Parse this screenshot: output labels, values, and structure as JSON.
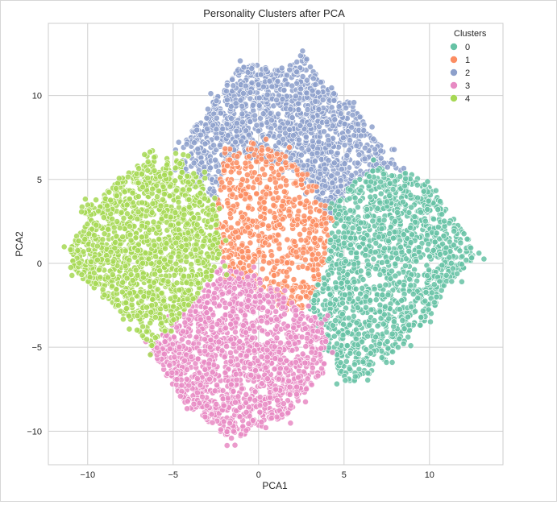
{
  "chart_data": {
    "type": "scatter",
    "title": "Personality Clusters after PCA",
    "xlabel": "PCA1",
    "ylabel": "PCA2",
    "xlim": [
      -12.3,
      14.3
    ],
    "ylim": [
      -12.0,
      14.3
    ],
    "xticks": [
      -10,
      -5,
      0,
      5,
      10
    ],
    "yticks": [
      -10,
      -5,
      0,
      5,
      10
    ],
    "xtick_labels": [
      "−10",
      "−5",
      "0",
      "5",
      "10"
    ],
    "ytick_labels": [
      "−10",
      "−5",
      "0",
      "5",
      "10"
    ],
    "grid": true,
    "legend": {
      "title": "Clusters",
      "placement": "top-right"
    },
    "series": [
      {
        "name": "0",
        "color": "#66c2a5",
        "outline": [
          [
            3.8,
            -1.0
          ],
          [
            4.5,
            3.5
          ],
          [
            5.5,
            4.8
          ],
          [
            7,
            5.8
          ],
          [
            9,
            5.3
          ],
          [
            10,
            4.5
          ],
          [
            11.8,
            2.2
          ],
          [
            12.9,
            0.6
          ],
          [
            11.5,
            -0.8
          ],
          [
            9.8,
            -3.5
          ],
          [
            8.5,
            -4.8
          ],
          [
            7.5,
            -5.7
          ],
          [
            6,
            -7
          ],
          [
            5,
            -7.2
          ],
          [
            4,
            -5
          ],
          [
            3.8,
            -3.5
          ],
          [
            2.8,
            -2.5
          ]
        ]
      },
      {
        "name": "1",
        "color": "#fc8d62",
        "outline": [
          [
            -2.5,
            3.5
          ],
          [
            -2.0,
            6.5
          ],
          [
            0,
            7.0
          ],
          [
            1.5,
            6.5
          ],
          [
            3.0,
            5.0
          ],
          [
            4.2,
            3.0
          ],
          [
            3.8,
            -0.8
          ],
          [
            2.5,
            -2.8
          ],
          [
            1.5,
            -2.5
          ],
          [
            0,
            -1.5
          ],
          [
            -1.5,
            -0.8
          ],
          [
            -2.5,
            1.0
          ]
        ]
      },
      {
        "name": "2",
        "color": "#8da0cb",
        "outline": [
          [
            -4.5,
            7.0
          ],
          [
            -2.5,
            10.0
          ],
          [
            -1,
            11.8
          ],
          [
            0,
            11.8
          ],
          [
            1.5,
            11.5
          ],
          [
            2.5,
            12.5
          ],
          [
            4,
            10.5
          ],
          [
            5.5,
            9.5
          ],
          [
            6.5,
            8.0
          ],
          [
            7.5,
            6.5
          ],
          [
            8.5,
            5.5
          ],
          [
            7,
            5.8
          ],
          [
            5.5,
            4.8
          ],
          [
            4.5,
            3.5
          ],
          [
            4.2,
            2.5
          ],
          [
            3.0,
            4.5
          ],
          [
            1.5,
            5.8
          ],
          [
            0,
            6.2
          ],
          [
            -2,
            6.0
          ],
          [
            -2.5,
            3.5
          ],
          [
            -3.5,
            4.5
          ],
          [
            -4.5,
            5.5
          ]
        ]
      },
      {
        "name": "3",
        "color": "#e78ac3",
        "outline": [
          [
            -2.3,
            -0.3
          ],
          [
            -0.5,
            -0.5
          ],
          [
            1.5,
            -2.0
          ],
          [
            2.5,
            -2.8
          ],
          [
            3.8,
            -3.5
          ],
          [
            4,
            -5
          ],
          [
            3.8,
            -6.5
          ],
          [
            2.5,
            -8
          ],
          [
            1.5,
            -9.2
          ],
          [
            0,
            -9.8
          ],
          [
            -1.5,
            -10.5
          ],
          [
            -3,
            -9.5
          ],
          [
            -4.2,
            -8.5
          ],
          [
            -5.5,
            -6.5
          ],
          [
            -6.3,
            -5.0
          ],
          [
            -5.0,
            -3.6
          ],
          [
            -4.0,
            -2.5
          ]
        ]
      },
      {
        "name": "4",
        "color": "#a6d854",
        "outline": [
          [
            -11,
            0.8
          ],
          [
            -10,
            3.5
          ],
          [
            -8,
            5.0
          ],
          [
            -6.5,
            6.5
          ],
          [
            -4.5,
            6.2
          ],
          [
            -3.5,
            5.0
          ],
          [
            -2.6,
            3.5
          ],
          [
            -2.3,
            1.5
          ],
          [
            -2.3,
            -0.3
          ],
          [
            -4.0,
            -2.5
          ],
          [
            -5.0,
            -3.6
          ],
          [
            -6.3,
            -5.0
          ],
          [
            -7.5,
            -3.5
          ],
          [
            -9.0,
            -2.0
          ],
          [
            -10.8,
            -0.5
          ]
        ]
      }
    ]
  }
}
